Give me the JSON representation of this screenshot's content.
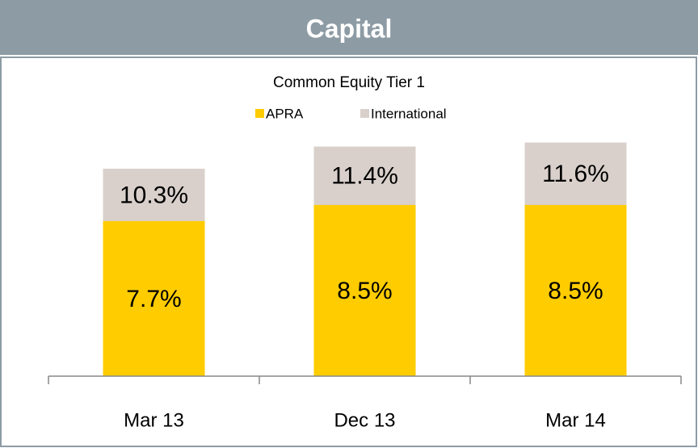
{
  "header": {
    "title": "Capital"
  },
  "chart_data": {
    "type": "bar",
    "title": "Common Equity Tier 1",
    "categories": [
      "Mar 13",
      "Dec 13",
      "Mar 14"
    ],
    "overlap": true,
    "series": [
      {
        "name": "APRA",
        "color": "#ffcc00",
        "values": [
          7.7,
          8.5,
          8.5
        ],
        "value_labels": [
          "7.7%",
          "8.5%",
          "8.5%"
        ]
      },
      {
        "name": "International",
        "color": "#d9d0cb",
        "values": [
          10.3,
          11.4,
          11.6
        ],
        "value_labels": [
          "10.3%",
          "11.4%",
          "11.6%"
        ]
      }
    ]
  }
}
